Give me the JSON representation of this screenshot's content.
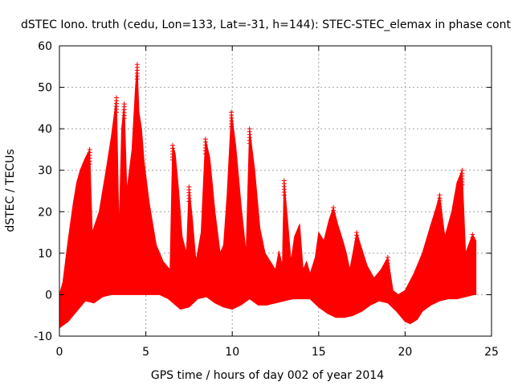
{
  "chart_data": {
    "type": "scatter",
    "title": "dSTEC Iono. truth (cedu, Lon=133, Lat=-31, h=144): STEC-STEC_elemax in phase cont",
    "xlabel": "GPS time / hours of day 002 of year 2014",
    "ylabel": "dSTEC  / TECUs",
    "xlim": [
      0,
      25
    ],
    "ylim": [
      -10,
      60
    ],
    "xticks": [
      0,
      5,
      10,
      15,
      20,
      25
    ],
    "yticks": [
      -10,
      0,
      10,
      20,
      30,
      40,
      50,
      60
    ],
    "xtick_labels": [
      "0",
      "5",
      "10",
      "15",
      "20",
      "25"
    ],
    "ytick_labels": [
      "-10",
      "0",
      "10",
      "20",
      "30",
      "40",
      "50",
      "60"
    ],
    "grid": true,
    "marker": "+",
    "color": "#ff0000",
    "envelope": {
      "upper": [
        [
          0,
          0
        ],
        [
          0.2,
          3
        ],
        [
          0.5,
          13
        ],
        [
          0.8,
          22
        ],
        [
          1.0,
          27
        ],
        [
          1.2,
          30
        ],
        [
          1.5,
          33
        ],
        [
          1.75,
          35
        ],
        [
          1.9,
          15
        ],
        [
          2.3,
          20
        ],
        [
          2.7,
          30
        ],
        [
          3.0,
          38
        ],
        [
          3.3,
          47.5
        ],
        [
          3.45,
          15
        ],
        [
          3.6,
          40
        ],
        [
          3.75,
          46
        ],
        [
          3.9,
          25
        ],
        [
          4.2,
          35
        ],
        [
          4.4,
          50
        ],
        [
          4.5,
          55.5
        ],
        [
          4.6,
          44
        ],
        [
          4.75,
          40
        ],
        [
          4.9,
          32
        ],
        [
          5.2,
          22
        ],
        [
          5.6,
          12
        ],
        [
          6.0,
          8
        ],
        [
          6.4,
          6
        ],
        [
          6.55,
          36
        ],
        [
          6.7,
          34
        ],
        [
          6.9,
          25
        ],
        [
          7.1,
          14
        ],
        [
          7.35,
          10
        ],
        [
          7.5,
          26
        ],
        [
          7.7,
          18
        ],
        [
          7.9,
          8
        ],
        [
          8.2,
          15
        ],
        [
          8.45,
          37.5
        ],
        [
          8.7,
          33
        ],
        [
          9.0,
          20
        ],
        [
          9.3,
          10
        ],
        [
          9.5,
          12
        ],
        [
          9.7,
          24
        ],
        [
          9.95,
          44
        ],
        [
          10.2,
          36
        ],
        [
          10.5,
          22
        ],
        [
          10.8,
          10
        ],
        [
          11.0,
          40
        ],
        [
          11.3,
          30
        ],
        [
          11.6,
          16
        ],
        [
          11.9,
          10
        ],
        [
          12.2,
          8
        ],
        [
          12.5,
          6
        ],
        [
          12.7,
          10.5
        ],
        [
          12.9,
          7
        ],
        [
          13.0,
          27.5
        ],
        [
          13.2,
          18
        ],
        [
          13.4,
          8
        ],
        [
          13.6,
          14
        ],
        [
          13.9,
          17
        ],
        [
          14.1,
          6
        ],
        [
          14.3,
          8
        ],
        [
          14.5,
          5
        ],
        [
          14.8,
          9
        ],
        [
          15.0,
          15
        ],
        [
          15.3,
          13
        ],
        [
          15.6,
          18
        ],
        [
          15.85,
          21
        ],
        [
          16.1,
          17
        ],
        [
          16.4,
          13
        ],
        [
          16.6,
          10
        ],
        [
          16.8,
          6
        ],
        [
          17.2,
          15
        ],
        [
          17.5,
          11
        ],
        [
          17.8,
          7
        ],
        [
          18.2,
          4
        ],
        [
          18.6,
          6
        ],
        [
          19.0,
          9
        ],
        [
          19.3,
          1
        ],
        [
          19.6,
          0
        ],
        [
          20.0,
          1
        ],
        [
          20.5,
          5
        ],
        [
          21.0,
          10
        ],
        [
          21.5,
          17
        ],
        [
          21.8,
          21
        ],
        [
          22.0,
          24
        ],
        [
          22.3,
          14
        ],
        [
          22.7,
          20
        ],
        [
          23.0,
          27
        ],
        [
          23.3,
          30
        ],
        [
          23.5,
          10
        ],
        [
          23.9,
          14.5
        ],
        [
          24.1,
          13
        ]
      ],
      "lower": [
        [
          0,
          -8
        ],
        [
          0.5,
          -6.5
        ],
        [
          1.0,
          -4
        ],
        [
          1.5,
          -1.5
        ],
        [
          2.0,
          -2
        ],
        [
          2.5,
          -0.5
        ],
        [
          3.0,
          0
        ],
        [
          5.0,
          0
        ],
        [
          5.8,
          0
        ],
        [
          6.3,
          -1
        ],
        [
          7.0,
          -3.5
        ],
        [
          7.5,
          -3
        ],
        [
          8.0,
          -1
        ],
        [
          8.5,
          -0.5
        ],
        [
          9.0,
          -2
        ],
        [
          9.5,
          -3
        ],
        [
          10.0,
          -3.5
        ],
        [
          10.5,
          -2.5
        ],
        [
          11.0,
          -1
        ],
        [
          11.5,
          -2.5
        ],
        [
          12.0,
          -2.5
        ],
        [
          12.5,
          -2
        ],
        [
          13.0,
          -1.5
        ],
        [
          13.5,
          -1
        ],
        [
          14.0,
          -1
        ],
        [
          14.5,
          -1
        ],
        [
          15.0,
          -3
        ],
        [
          15.5,
          -4.5
        ],
        [
          16.0,
          -5.5
        ],
        [
          16.5,
          -5.5
        ],
        [
          17.0,
          -5
        ],
        [
          17.5,
          -4
        ],
        [
          18.0,
          -2.5
        ],
        [
          18.5,
          -1.5
        ],
        [
          19.0,
          -2
        ],
        [
          19.5,
          -4
        ],
        [
          20.0,
          -6.5
        ],
        [
          20.3,
          -7
        ],
        [
          20.7,
          -6
        ],
        [
          21.0,
          -4
        ],
        [
          21.5,
          -2.5
        ],
        [
          22.0,
          -1.5
        ],
        [
          22.5,
          -1
        ],
        [
          23.0,
          -1
        ],
        [
          23.5,
          -0.5
        ],
        [
          24.0,
          0
        ],
        [
          24.1,
          0
        ]
      ],
      "peak_markers": [
        [
          1.75,
          35
        ],
        [
          3.3,
          47.5
        ],
        [
          3.75,
          46
        ],
        [
          4.5,
          55.5
        ],
        [
          6.55,
          36
        ],
        [
          7.5,
          26
        ],
        [
          8.45,
          37.5
        ],
        [
          9.95,
          44
        ],
        [
          11.0,
          40
        ],
        [
          13.0,
          27.5
        ],
        [
          15.85,
          21
        ],
        [
          17.2,
          15
        ],
        [
          19.0,
          9
        ],
        [
          22.0,
          24
        ],
        [
          23.3,
          30
        ],
        [
          23.9,
          14.5
        ]
      ]
    }
  }
}
